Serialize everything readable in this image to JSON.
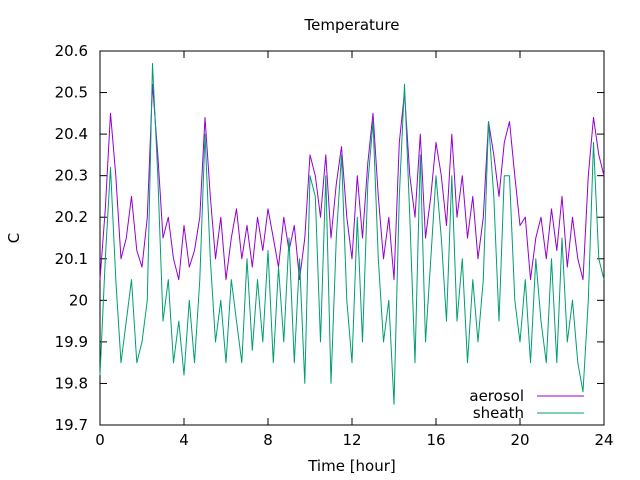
{
  "chart_data": {
    "type": "line",
    "title": "Temperature",
    "xlabel": "Time [hour]",
    "ylabel": "C",
    "xlim": [
      0,
      24
    ],
    "ylim": [
      19.7,
      20.6
    ],
    "xticks": [
      0,
      4,
      8,
      12,
      16,
      20,
      24
    ],
    "yticks": [
      19.7,
      19.8,
      19.9,
      20,
      20.1,
      20.2,
      20.3,
      20.4,
      20.5,
      20.6
    ],
    "ytick_labels": [
      "19.7",
      "19.8",
      "19.9",
      "20",
      "20.1",
      "20.2",
      "20.3",
      "20.4",
      "20.5",
      "20.6"
    ],
    "grid": false,
    "legend_position": "bottom-right",
    "series": [
      {
        "name": "aerosol",
        "color": "#9400d3",
        "x": [
          0.0,
          0.25,
          0.5,
          0.75,
          1.0,
          1.25,
          1.5,
          1.75,
          2.0,
          2.25,
          2.5,
          2.75,
          3.0,
          3.25,
          3.5,
          3.75,
          4.0,
          4.25,
          4.5,
          4.75,
          5.0,
          5.25,
          5.5,
          5.75,
          6.0,
          6.25,
          6.5,
          6.75,
          7.0,
          7.25,
          7.5,
          7.75,
          8.0,
          8.25,
          8.5,
          8.75,
          9.0,
          9.25,
          9.5,
          9.75,
          10.0,
          10.25,
          10.5,
          10.75,
          11.0,
          11.25,
          11.5,
          11.75,
          12.0,
          12.25,
          12.5,
          12.75,
          13.0,
          13.25,
          13.5,
          13.75,
          14.0,
          14.25,
          14.5,
          14.75,
          15.0,
          15.25,
          15.5,
          15.75,
          16.0,
          16.25,
          16.5,
          16.75,
          17.0,
          17.25,
          17.5,
          17.75,
          18.0,
          18.25,
          18.5,
          18.75,
          19.0,
          19.25,
          19.5,
          19.75,
          20.0,
          20.25,
          20.5,
          20.75,
          21.0,
          21.25,
          21.5,
          21.75,
          22.0,
          22.25,
          22.5,
          22.75,
          23.0,
          23.25,
          23.5,
          23.75,
          24.0
        ],
        "y": [
          20.05,
          20.22,
          20.45,
          20.3,
          20.1,
          20.15,
          20.25,
          20.12,
          20.08,
          20.2,
          20.52,
          20.35,
          20.15,
          20.2,
          20.1,
          20.05,
          20.18,
          20.08,
          20.12,
          20.2,
          20.44,
          20.25,
          20.1,
          20.2,
          20.05,
          20.15,
          20.22,
          20.1,
          20.18,
          20.08,
          20.2,
          20.12,
          20.22,
          20.15,
          20.08,
          20.2,
          20.12,
          20.18,
          20.05,
          20.15,
          20.35,
          20.3,
          20.2,
          20.35,
          20.15,
          20.28,
          20.37,
          20.2,
          20.1,
          20.3,
          20.15,
          20.33,
          20.45,
          20.25,
          20.1,
          20.2,
          20.05,
          20.38,
          20.5,
          20.3,
          20.2,
          20.4,
          20.15,
          20.25,
          20.38,
          20.3,
          20.18,
          20.4,
          20.2,
          20.3,
          20.15,
          20.25,
          20.1,
          20.2,
          20.43,
          20.35,
          20.25,
          20.38,
          20.43,
          20.3,
          20.18,
          20.2,
          20.05,
          20.15,
          20.2,
          20.1,
          20.22,
          20.12,
          20.25,
          20.08,
          20.2,
          20.1,
          20.05,
          20.3,
          20.44,
          20.35,
          20.3
        ]
      },
      {
        "name": "sheath",
        "color": "#009e73",
        "x": [
          0.0,
          0.25,
          0.5,
          0.75,
          1.0,
          1.25,
          1.5,
          1.75,
          2.0,
          2.25,
          2.5,
          2.75,
          3.0,
          3.25,
          3.5,
          3.75,
          4.0,
          4.25,
          4.5,
          4.75,
          5.0,
          5.25,
          5.5,
          5.75,
          6.0,
          6.25,
          6.5,
          6.75,
          7.0,
          7.25,
          7.5,
          7.75,
          8.0,
          8.25,
          8.5,
          8.75,
          9.0,
          9.25,
          9.5,
          9.75,
          10.0,
          10.25,
          10.5,
          10.75,
          11.0,
          11.25,
          11.5,
          11.75,
          12.0,
          12.25,
          12.5,
          12.75,
          13.0,
          13.25,
          13.5,
          13.75,
          14.0,
          14.25,
          14.5,
          14.75,
          15.0,
          15.25,
          15.5,
          15.75,
          16.0,
          16.25,
          16.5,
          16.75,
          17.0,
          17.25,
          17.5,
          17.75,
          18.0,
          18.25,
          18.5,
          18.75,
          19.0,
          19.25,
          19.5,
          19.75,
          20.0,
          20.25,
          20.5,
          20.75,
          21.0,
          21.25,
          21.5,
          21.75,
          22.0,
          22.25,
          22.5,
          22.75,
          23.0,
          23.25,
          23.5,
          23.75,
          24.0
        ],
        "y": [
          19.82,
          20.1,
          20.32,
          20.05,
          19.85,
          19.95,
          20.05,
          19.85,
          19.9,
          20.0,
          20.57,
          20.3,
          19.95,
          20.05,
          19.85,
          19.95,
          19.82,
          20.0,
          19.85,
          20.05,
          20.4,
          20.1,
          19.9,
          20.0,
          19.85,
          20.05,
          19.95,
          19.85,
          20.1,
          19.88,
          20.05,
          19.9,
          20.12,
          19.85,
          20.08,
          19.9,
          20.15,
          19.85,
          20.1,
          19.8,
          20.3,
          20.25,
          19.9,
          20.3,
          19.8,
          20.15,
          20.35,
          20.0,
          19.85,
          20.2,
          19.9,
          20.28,
          20.43,
          20.1,
          19.9,
          20.0,
          19.75,
          20.25,
          20.52,
          20.2,
          19.85,
          20.35,
          19.9,
          20.1,
          20.3,
          20.15,
          19.95,
          20.3,
          19.95,
          20.1,
          19.85,
          20.05,
          19.9,
          20.05,
          20.43,
          20.25,
          19.95,
          20.3,
          20.3,
          20.0,
          19.9,
          20.05,
          19.85,
          20.1,
          19.95,
          19.85,
          20.1,
          19.85,
          20.15,
          19.9,
          20.0,
          19.85,
          19.78,
          20.0,
          20.38,
          20.1,
          20.05
        ]
      }
    ]
  }
}
